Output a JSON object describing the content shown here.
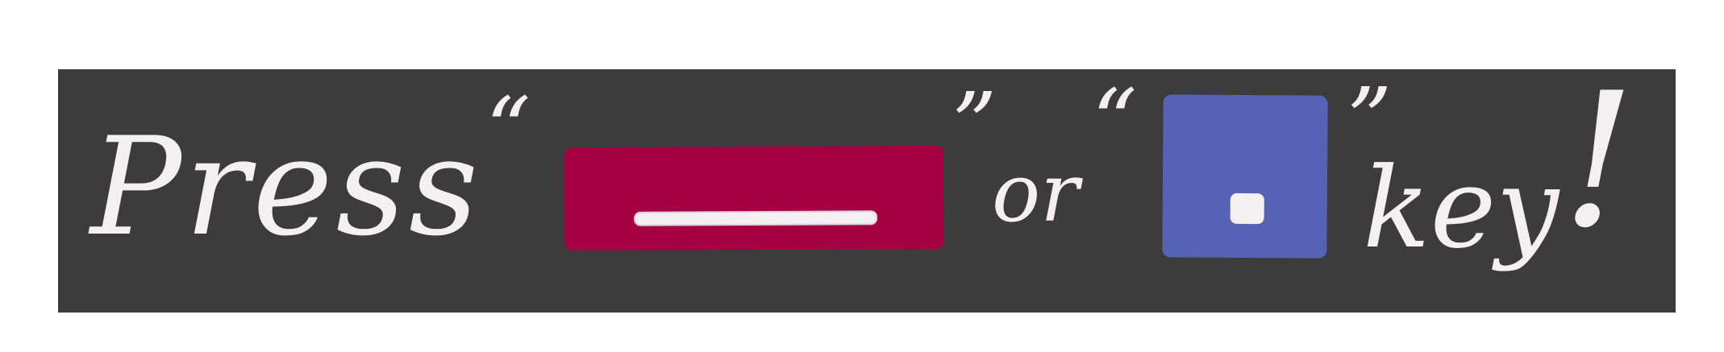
{
  "banner": {
    "press": "Press",
    "open_quote_1": "“",
    "close_quote_1": "”",
    "or": "or",
    "open_quote_2": "“",
    "close_quote_2": "”",
    "key": "key",
    "exclamation": "!"
  },
  "keys": {
    "minus_key_icon": "minus-key-icon",
    "dot_key_icon": "dot-key-icon"
  },
  "colors": {
    "background": "#3c3c3c",
    "text": "#f4f0f2",
    "minus_key": "#a50044",
    "dot_key": "#5562b6"
  }
}
